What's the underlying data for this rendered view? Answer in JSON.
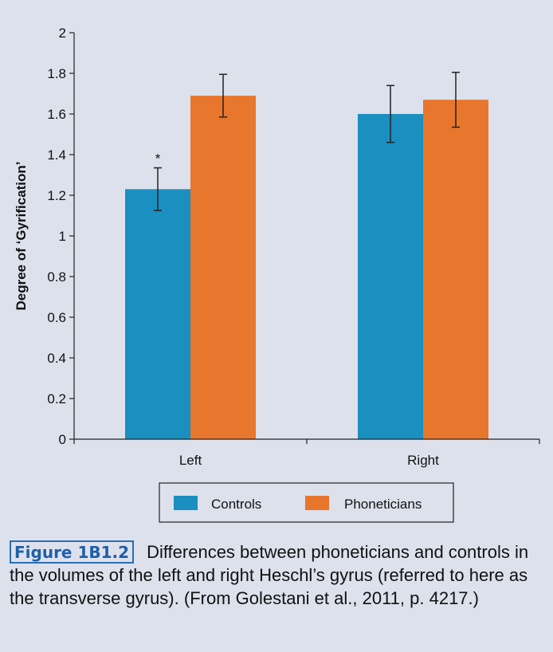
{
  "chart_data": {
    "type": "bar",
    "title": "",
    "xlabel": "",
    "ylabel": "Degree of ‘Gyrification’",
    "ylim": [
      0,
      2
    ],
    "yticks": [
      "0",
      "0.2",
      "0.4",
      "0.6",
      "0.8",
      "1",
      "1.2",
      "1.4",
      "1.6",
      "1.8",
      "2"
    ],
    "categories": [
      "Left",
      "Right"
    ],
    "series": [
      {
        "name": "Controls",
        "color": "#1a8fc0",
        "values": [
          1.23,
          1.6
        ],
        "errors": [
          0.105,
          0.14
        ]
      },
      {
        "name": "Phoneticians",
        "color": "#e8762c",
        "values": [
          1.69,
          1.67
        ],
        "errors": [
          0.105,
          0.135
        ]
      }
    ],
    "annotations": [
      {
        "text": "*",
        "category": "Left",
        "series": "Controls"
      }
    ],
    "legend": "bottom-center",
    "grid": false
  },
  "caption": {
    "label": "Figure 1B1.2",
    "text": "Differences between phoneticians and controls in the volumes of the left and right Heschl’s gyrus (referred to here as the transverse gyrus). (From Golestani et al., 2011, p. 4217.)"
  }
}
